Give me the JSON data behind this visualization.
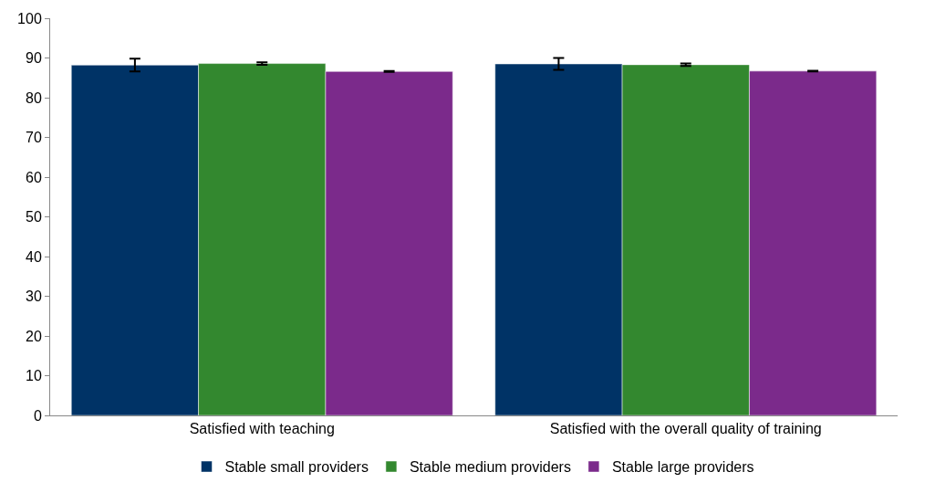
{
  "chart_data": {
    "type": "bar",
    "categories": [
      "Satisfied with teaching",
      "Satisfied with the overall quality of training"
    ],
    "series": [
      {
        "name": "Stable small providers",
        "color": "#003366",
        "values": [
          88.2,
          88.5
        ],
        "errors": [
          1.6,
          1.5
        ]
      },
      {
        "name": "Stable medium providers",
        "color": "#33882f",
        "values": [
          88.6,
          88.3
        ],
        "errors": [
          0.3,
          0.3
        ]
      },
      {
        "name": "Stable large providers",
        "color": "#7b2a8b",
        "values": [
          86.6,
          86.7
        ],
        "errors": [
          0.1,
          0.1
        ]
      }
    ],
    "ylim": [
      0,
      100
    ],
    "yticks": [
      0,
      10,
      20,
      30,
      40,
      50,
      60,
      70,
      80,
      90,
      100
    ],
    "legend": "bottom"
  }
}
